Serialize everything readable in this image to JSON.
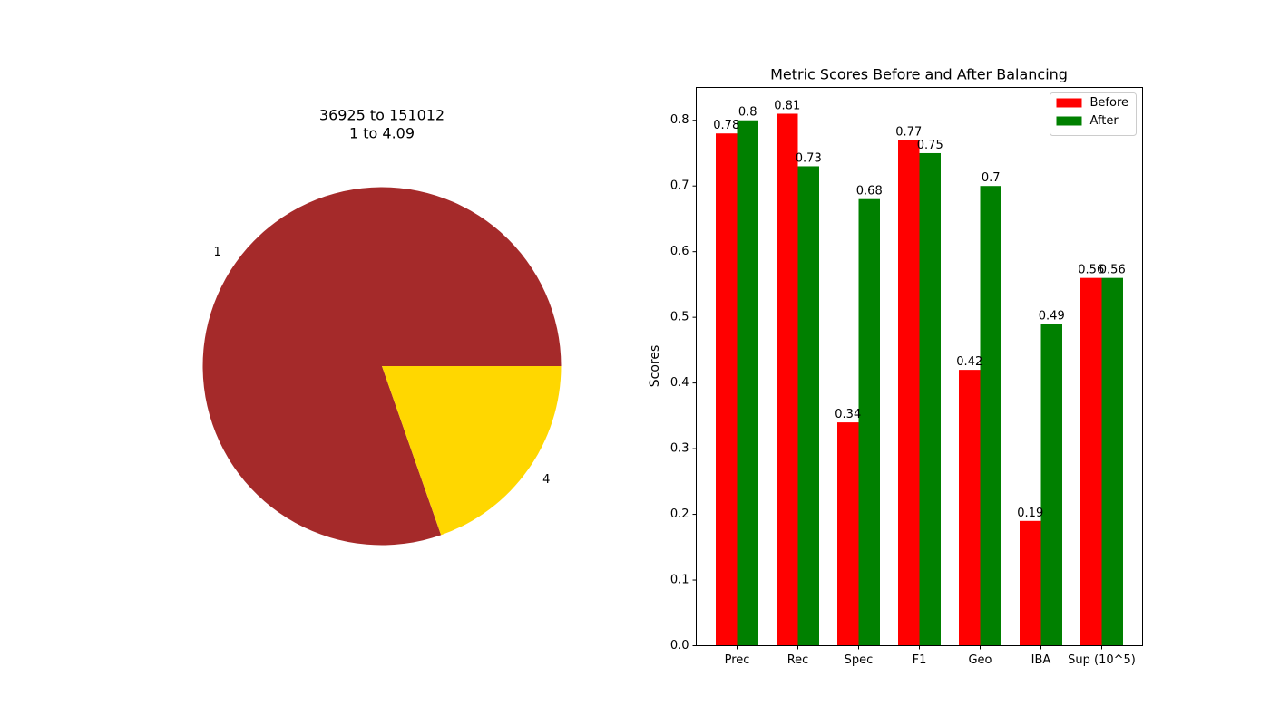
{
  "chart_data": [
    {
      "type": "pie",
      "title_lines": [
        "36925 to 151012",
        "1 to 4.09"
      ],
      "labels": [
        "1",
        "4"
      ],
      "values": [
        151012,
        36925
      ],
      "colors": [
        "#a52a2a",
        "#ffd700"
      ],
      "start_angle_deg": 0,
      "direction": "counterclockwise"
    },
    {
      "type": "bar",
      "title": "Metric Scores Before and After Balancing",
      "xlabel": "",
      "ylabel": "Scores",
      "categories": [
        "Prec",
        "Rec",
        "Spec",
        "F1",
        "Geo",
        "IBA",
        "Sup (10^5)"
      ],
      "series": [
        {
          "name": "Before",
          "color": "#ff0000",
          "values": [
            0.78,
            0.81,
            0.34,
            0.77,
            0.42,
            0.19,
            0.56
          ]
        },
        {
          "name": "After",
          "color": "#008000",
          "values": [
            0.8,
            0.73,
            0.68,
            0.75,
            0.7,
            0.49,
            0.56
          ]
        }
      ],
      "ylim": [
        0,
        0.85
      ],
      "yticks": [
        "0.0",
        "0.1",
        "0.2",
        "0.3",
        "0.4",
        "0.5",
        "0.6",
        "0.7",
        "0.8"
      ],
      "legend_position": "top-right",
      "grid": false
    }
  ]
}
